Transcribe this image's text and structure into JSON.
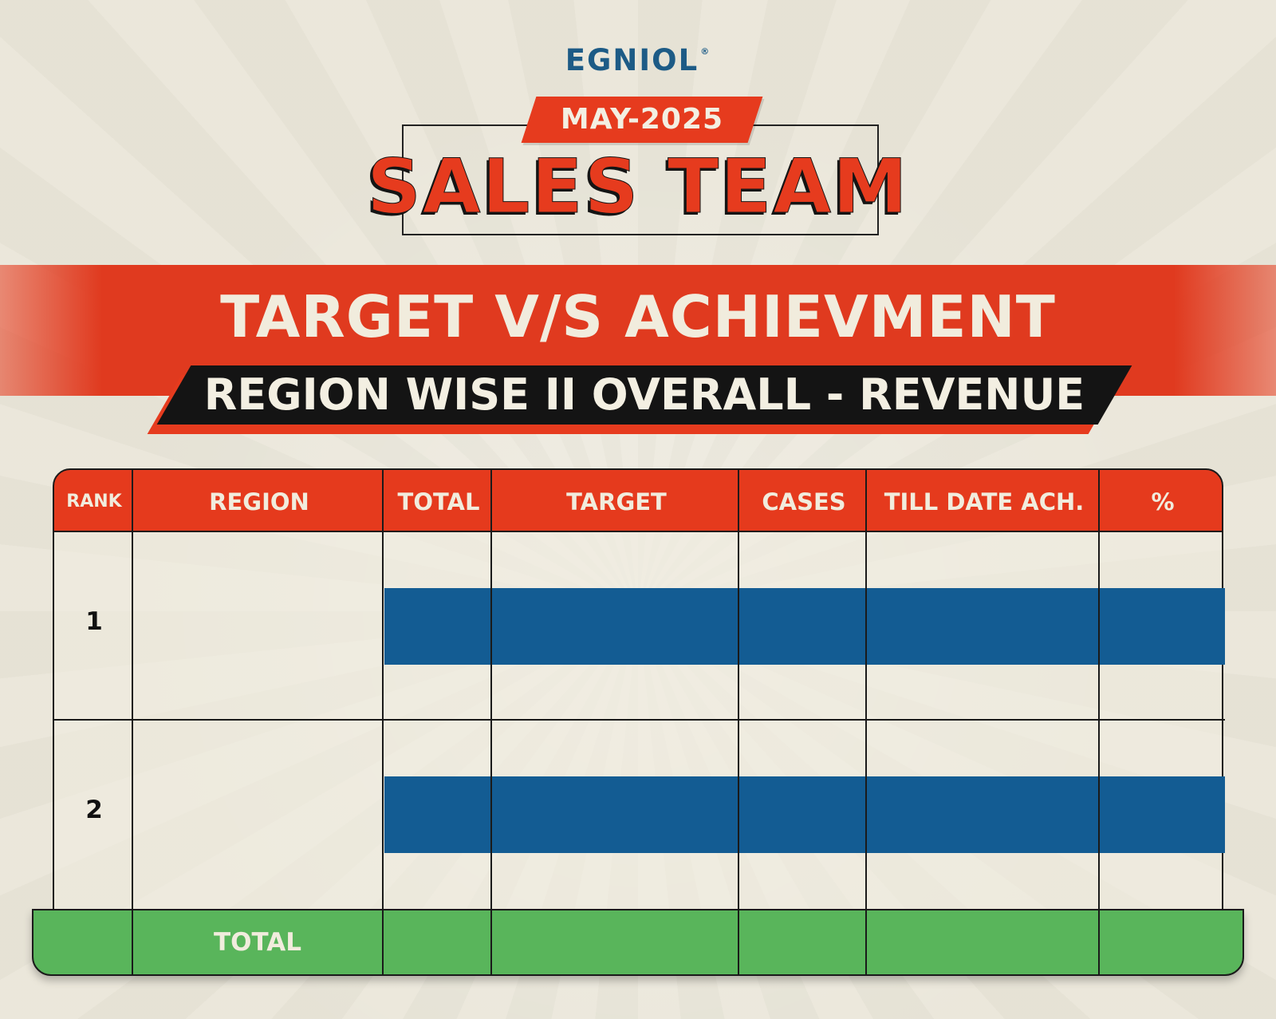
{
  "brand": {
    "logo_text": "EGNIOL",
    "logo_mark": "®",
    "color": "#1d5b86"
  },
  "header": {
    "month": "MAY-2025",
    "title": "SALES TEAM"
  },
  "banner": {
    "title": "TARGET V/S ACHIEVMENT",
    "subtitle": "REGION WISE II OVERALL - REVENUE"
  },
  "table": {
    "columns": [
      "RANK",
      "REGION",
      "TOTAL",
      "TARGET",
      "CASES",
      "TILL DATE ACH.",
      "%"
    ],
    "rows": [
      {
        "rank": "1"
      },
      {
        "rank": "2"
      }
    ],
    "footer_label": "TOTAL"
  },
  "colors": {
    "accent_red": "#e53a1d",
    "band_blue": "#135c93",
    "footer_green": "#59b55b",
    "paper": "#ebe7da"
  }
}
